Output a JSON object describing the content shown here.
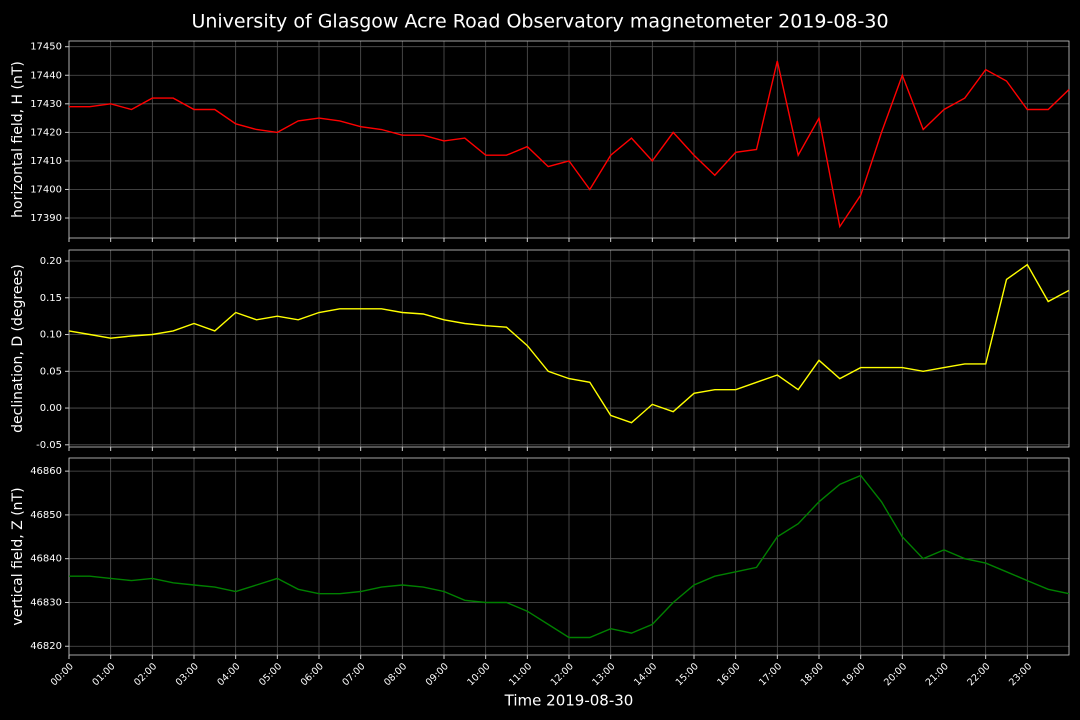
{
  "title": "University of Glasgow Acre Road Observatory magnetometer 2019-08-30",
  "chart_data": [
    {
      "type": "line",
      "ylabel": "horizontal field, H (nT)",
      "color": "#ff0000",
      "x": [
        0,
        0.5,
        1,
        1.5,
        2,
        2.5,
        3,
        3.5,
        4,
        4.5,
        5,
        5.5,
        6,
        6.5,
        7,
        7.5,
        8,
        8.5,
        9,
        9.5,
        10,
        10.5,
        11,
        11.5,
        12,
        12.5,
        13,
        13.5,
        14,
        14.5,
        15,
        15.5,
        16,
        16.5,
        17,
        17.5,
        18,
        18.5,
        19,
        19.5,
        20,
        20.5,
        21,
        21.5,
        22,
        22.5,
        23,
        23.5,
        24
      ],
      "values": [
        17429,
        17429,
        17430,
        17428,
        17432,
        17432,
        17428,
        17428,
        17423,
        17421,
        17420,
        17424,
        17425,
        17424,
        17422,
        17421,
        17419,
        17419,
        17417,
        17418,
        17412,
        17412,
        17415,
        17408,
        17410,
        17400,
        17412,
        17418,
        17410,
        17420,
        17412,
        17405,
        17413,
        17414,
        17445,
        17412,
        17425,
        17387,
        17398,
        17420,
        17440,
        17421,
        17428,
        17432,
        17442,
        17438,
        17428,
        17428,
        17435
      ],
      "xlim": [
        0,
        24
      ],
      "xticks": [
        0,
        1,
        2,
        3,
        4,
        5,
        6,
        7,
        8,
        9,
        10,
        11,
        12,
        13,
        14,
        15,
        16,
        17,
        18,
        19,
        20,
        21,
        22,
        23
      ],
      "ylim": [
        17383,
        17452
      ],
      "yticks": [
        17390,
        17400,
        17410,
        17420,
        17430,
        17440,
        17450
      ],
      "grid": true
    },
    {
      "type": "line",
      "ylabel": "declination, D (degrees)",
      "color": "#ffff00",
      "x": [
        0,
        0.5,
        1,
        1.5,
        2,
        2.5,
        3,
        3.5,
        4,
        4.5,
        5,
        5.5,
        6,
        6.5,
        7,
        7.5,
        8,
        8.5,
        9,
        9.5,
        10,
        10.5,
        11,
        11.5,
        12,
        12.5,
        13,
        13.5,
        14,
        14.5,
        15,
        15.5,
        16,
        16.5,
        17,
        17.5,
        18,
        18.5,
        19,
        19.5,
        20,
        20.5,
        21,
        21.5,
        22,
        22.5,
        23,
        23.5,
        24
      ],
      "values": [
        0.105,
        0.1,
        0.095,
        0.098,
        0.1,
        0.105,
        0.115,
        0.105,
        0.13,
        0.12,
        0.125,
        0.12,
        0.13,
        0.135,
        0.135,
        0.135,
        0.13,
        0.128,
        0.12,
        0.115,
        0.112,
        0.11,
        0.085,
        0.05,
        0.04,
        0.035,
        -0.01,
        -0.02,
        0.005,
        -0.005,
        0.02,
        0.025,
        0.025,
        0.035,
        0.045,
        0.025,
        0.065,
        0.04,
        0.055,
        0.055,
        0.055,
        0.05,
        0.055,
        0.06,
        0.06,
        0.175,
        0.195,
        0.145,
        0.16
      ],
      "xlim": [
        0,
        24
      ],
      "xticks": [
        0,
        1,
        2,
        3,
        4,
        5,
        6,
        7,
        8,
        9,
        10,
        11,
        12,
        13,
        14,
        15,
        16,
        17,
        18,
        19,
        20,
        21,
        22,
        23
      ],
      "ylim": [
        -0.053,
        0.215
      ],
      "yticks": [
        -0.05,
        {
          "value": 0,
          "label": "0.00"
        },
        0.05,
        {
          "value": 0.1,
          "label": "0.10"
        },
        0.15,
        {
          "value": 0.2,
          "label": "0.20"
        }
      ],
      "grid": true
    },
    {
      "type": "line",
      "ylabel": "vertical field, Z (nT)",
      "xlabel": "Time 2019-08-30",
      "color": "#008000",
      "x": [
        0,
        0.5,
        1,
        1.5,
        2,
        2.5,
        3,
        3.5,
        4,
        4.5,
        5,
        5.5,
        6,
        6.5,
        7,
        7.5,
        8,
        8.5,
        9,
        9.5,
        10,
        10.5,
        11,
        11.5,
        12,
        12.5,
        13,
        13.5,
        14,
        14.5,
        15,
        15.5,
        16,
        16.5,
        17,
        17.5,
        18,
        18.5,
        19,
        19.5,
        20,
        20.5,
        21,
        21.5,
        22,
        22.5,
        23,
        23.5,
        24
      ],
      "values": [
        46836,
        46836,
        46835.5,
        46835,
        46835.5,
        46834.5,
        46834,
        46833.5,
        46832.5,
        46834,
        46835.5,
        46833,
        46832,
        46832,
        46832.5,
        46833.5,
        46834,
        46833.5,
        46832.5,
        46830.5,
        46830,
        46830,
        46828,
        46825,
        46822,
        46822,
        46824,
        46823,
        46825,
        46830,
        46834,
        46836,
        46837,
        46838,
        46845,
        46848,
        46853,
        46857,
        46859,
        46853,
        46845,
        46840,
        46842,
        46840,
        46839,
        46837,
        46835,
        46833,
        46832
      ],
      "xlim": [
        0,
        24
      ],
      "xticks": [
        {
          "value": 0,
          "label": "00:00"
        },
        {
          "value": 1,
          "label": "01:00"
        },
        {
          "value": 2,
          "label": "02:00"
        },
        {
          "value": 3,
          "label": "03:00"
        },
        {
          "value": 4,
          "label": "04:00"
        },
        {
          "value": 5,
          "label": "05:00"
        },
        {
          "value": 6,
          "label": "06:00"
        },
        {
          "value": 7,
          "label": "07:00"
        },
        {
          "value": 8,
          "label": "08:00"
        },
        {
          "value": 9,
          "label": "09:00"
        },
        {
          "value": 10,
          "label": "10:00"
        },
        {
          "value": 11,
          "label": "11:00"
        },
        {
          "value": 12,
          "label": "12:00"
        },
        {
          "value": 13,
          "label": "13:00"
        },
        {
          "value": 14,
          "label": "14:00"
        },
        {
          "value": 15,
          "label": "15:00"
        },
        {
          "value": 16,
          "label": "16:00"
        },
        {
          "value": 17,
          "label": "17:00"
        },
        {
          "value": 18,
          "label": "18:00"
        },
        {
          "value": 19,
          "label": "19:00"
        },
        {
          "value": 20,
          "label": "20:00"
        },
        {
          "value": 21,
          "label": "21:00"
        },
        {
          "value": 22,
          "label": "22:00"
        },
        {
          "value": 23,
          "label": "23:00"
        }
      ],
      "ylim": [
        46818,
        46863
      ],
      "yticks": [
        46820,
        46830,
        46840,
        46850,
        46860
      ],
      "grid": true
    }
  ]
}
